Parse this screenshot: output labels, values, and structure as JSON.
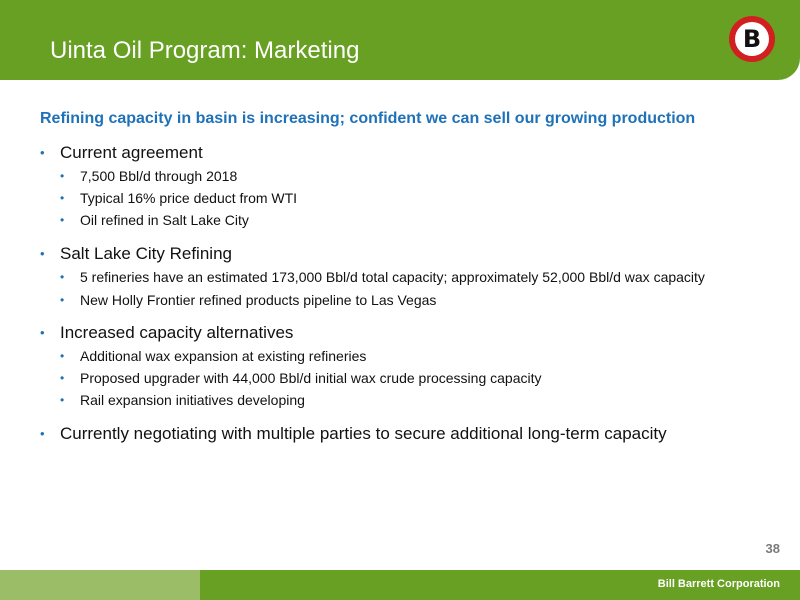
{
  "header": {
    "title": "Uinta Oil Program: Marketing",
    "logo_letter": "B",
    "logo_colors": {
      "ring": "#d21f1f",
      "center": "#ffffff",
      "letter": "#111111"
    }
  },
  "subtitle": "Refining capacity in basin is increasing; confident we can sell our growing production",
  "bullets": [
    {
      "text": "Current agreement",
      "sub": [
        "7,500 Bbl/d through 2018",
        "Typical 16% price deduct from WTI",
        "Oil refined in Salt Lake City"
      ]
    },
    {
      "text": "Salt Lake City Refining",
      "sub": [
        "5 refineries have an estimated 173,000 Bbl/d total capacity; approximately 52,000 Bbl/d wax capacity",
        "New Holly Frontier refined products pipeline to Las Vegas"
      ]
    },
    {
      "text": "Increased capacity alternatives",
      "sub": [
        "Additional wax expansion at existing refineries",
        "Proposed upgrader with 44,000 Bbl/d initial wax crude processing capacity",
        "Rail expansion initiatives developing"
      ]
    },
    {
      "text": "Currently negotiating with multiple parties to secure additional long-term capacity",
      "sub": []
    }
  ],
  "bullet_glyph": "•",
  "page_number": "38",
  "footer": {
    "company": "Bill Barrett Corporation"
  },
  "colors": {
    "header_green": "#67a022",
    "footer_light_green": "#9bbd68",
    "accent_blue": "#1f72b8"
  }
}
